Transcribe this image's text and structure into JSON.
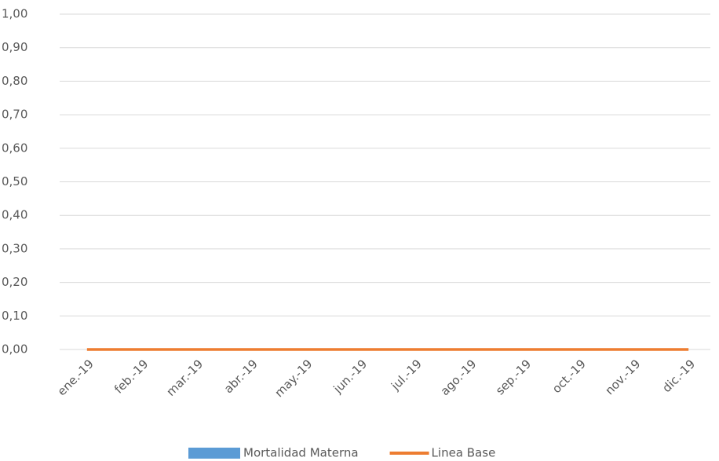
{
  "chart_data": {
    "type": "bar_line",
    "categories": [
      "ene.-19",
      "feb.-19",
      "mar.-19",
      "abr.-19",
      "may.-19",
      "jun.-19",
      "jul.-19",
      "ago.-19",
      "sep.-19",
      "oct.-19",
      "nov.-19",
      "dic.-19"
    ],
    "series": [
      {
        "name": "Mortalidad Materna",
        "type": "bar",
        "color": "#5b9bd5",
        "values": [
          0,
          0,
          0,
          0,
          0,
          0,
          0,
          0,
          0,
          0,
          0,
          0
        ]
      },
      {
        "name": "Linea Base",
        "type": "line",
        "color": "#ed7d31",
        "values": [
          0,
          0,
          0,
          0,
          0,
          0,
          0,
          0,
          0,
          0,
          0,
          0
        ]
      }
    ],
    "ylim": [
      0,
      1
    ],
    "yticks": [
      {
        "value": 0,
        "label": "0,00"
      },
      {
        "value": 0.1,
        "label": "0,10"
      },
      {
        "value": 0.2,
        "label": "0,20"
      },
      {
        "value": 0.3,
        "label": "0,30"
      },
      {
        "value": 0.4,
        "label": "0,40"
      },
      {
        "value": 0.5,
        "label": "0,50"
      },
      {
        "value": 0.6,
        "label": "0,60"
      },
      {
        "value": 0.7,
        "label": "0,70"
      },
      {
        "value": 0.8,
        "label": "0,80"
      },
      {
        "value": 0.9,
        "label": "0,90"
      },
      {
        "value": 1,
        "label": "1,00"
      }
    ],
    "grid": true,
    "legend": "bottom"
  }
}
